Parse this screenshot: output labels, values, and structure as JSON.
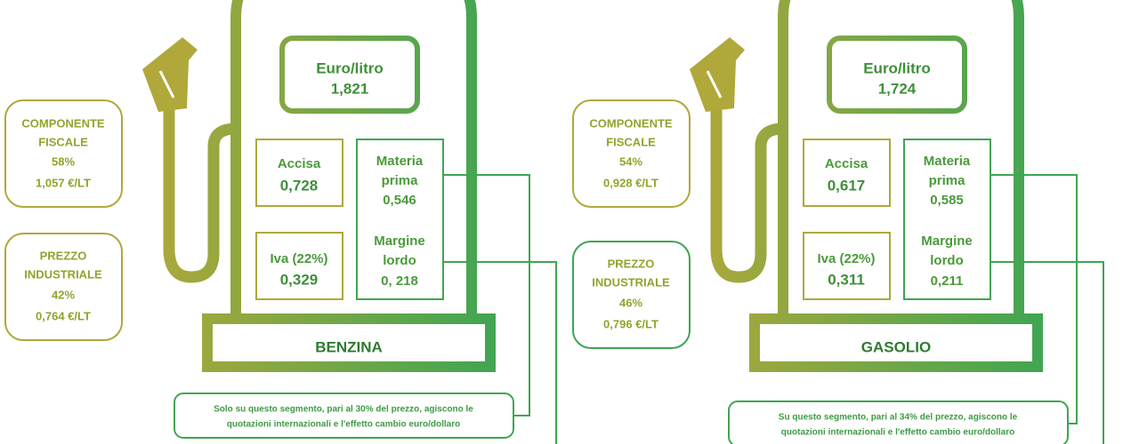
{
  "pumps": [
    {
      "price_label": "Euro/litro",
      "price": "1,821",
      "accisa_label": "Accisa",
      "accisa": "0,728",
      "iva_label": "Iva (22%)",
      "iva": "0,329",
      "materia_label": [
        "Materia",
        "prima"
      ],
      "materia": "0,546",
      "margine_label": [
        "Margine",
        "lordo"
      ],
      "margine": "0, 218",
      "name": "BENZINA",
      "fiscal": {
        "label": [
          "COMPONENTE",
          "FISCALE"
        ],
        "percent": "58%",
        "amount": "1,057 €/LT"
      },
      "industrial": {
        "label": [
          "PREZZO",
          "INDUSTRIALE"
        ],
        "percent": "42%",
        "amount": "0,764 €/LT"
      },
      "note": [
        "Solo su questo segmento, pari al 30% del prezzo, agiscono le",
        "quotazioni internazionali e l'effetto cambio euro/dollaro"
      ]
    },
    {
      "price_label": "Euro/litro",
      "price": "1,724",
      "accisa_label": "Accisa",
      "accisa": "0,617",
      "iva_label": "Iva (22%)",
      "iva": "0,311",
      "materia_label": [
        "Materia",
        "prima"
      ],
      "materia": "0,585",
      "margine_label": [
        "Margine",
        "lordo"
      ],
      "margine": "0,211",
      "name": "GASOLIO",
      "fiscal": {
        "label": [
          "COMPONENTE",
          "FISCALE"
        ],
        "percent": "54%",
        "amount": "0,928 €/LT"
      },
      "industrial": {
        "label": [
          "PREZZO",
          "INDUSTRIALE"
        ],
        "percent": "46%",
        "amount": "0,796 €/LT"
      },
      "note": [
        "Su questo segmento, pari al 34% del prezzo, agiscono le",
        "quotazioni internazionali e l'effetto cambio euro/dollaro"
      ]
    }
  ]
}
